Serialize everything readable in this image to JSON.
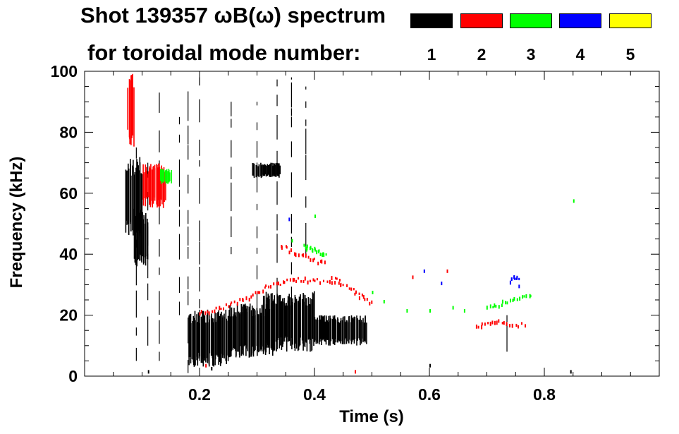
{
  "chart_data": {
    "type": "scatter",
    "title": "Shot 139357 ωB(ω) spectrum",
    "subtitle": "for toroidal mode number:",
    "xlabel": "Time (s)",
    "ylabel": "Frequency (kHz)",
    "xlim": [
      0.0,
      1.0
    ],
    "ylim": [
      0,
      100
    ],
    "x_ticks": [
      0.2,
      0.4,
      0.6,
      0.8
    ],
    "y_ticks": [
      0,
      20,
      40,
      60,
      80,
      100
    ],
    "legend": {
      "placement": "top-right",
      "entries": [
        {
          "n": "1",
          "color": "#000000"
        },
        {
          "n": "2",
          "color": "#ff0000"
        },
        {
          "n": "3",
          "color": "#00ff00"
        },
        {
          "n": "4",
          "color": "#0000ff"
        },
        {
          "n": "5",
          "color": "#ffff00"
        }
      ]
    },
    "series": [
      {
        "name": "n=1",
        "color": "#000000",
        "blobs": [
          {
            "t0": 0.07,
            "t1": 0.1,
            "f0": 45,
            "f1": 72
          },
          {
            "t0": 0.085,
            "t1": 0.11,
            "f0": 35,
            "f1": 55
          },
          {
            "t0": 0.18,
            "t1": 0.25,
            "f0": 3,
            "f1": 22
          },
          {
            "t0": 0.25,
            "t1": 0.33,
            "f0": 6,
            "f1": 24
          },
          {
            "t0": 0.31,
            "t1": 0.4,
            "f0": 8,
            "f1": 28
          },
          {
            "t0": 0.4,
            "t1": 0.49,
            "f0": 10,
            "f1": 20
          },
          {
            "t0": 0.29,
            "t1": 0.34,
            "f0": 65,
            "f1": 70
          }
        ],
        "lines": [
          {
            "t": 0.09,
            "f0": 5,
            "f1": 75
          },
          {
            "t": 0.11,
            "f0": 10,
            "f1": 70
          },
          {
            "t": 0.13,
            "f0": 5,
            "f1": 95
          },
          {
            "t": 0.165,
            "f0": 20,
            "f1": 85
          },
          {
            "t": 0.18,
            "f0": 1,
            "f1": 98
          },
          {
            "t": 0.2,
            "f0": 5,
            "f1": 98
          },
          {
            "t": 0.255,
            "f0": 40,
            "f1": 90
          },
          {
            "t": 0.3,
            "f0": 10,
            "f1": 90
          },
          {
            "t": 0.335,
            "f0": 25,
            "f1": 98
          },
          {
            "t": 0.36,
            "f0": 20,
            "f1": 98
          },
          {
            "t": 0.385,
            "f0": 40,
            "f1": 95
          },
          {
            "t": 0.735,
            "f0": 8,
            "f1": 20
          }
        ],
        "points": [
          [
            0.11,
            2
          ],
          [
            0.22,
            3
          ],
          [
            0.6,
            4
          ],
          [
            0.845,
            2
          ]
        ]
      },
      {
        "name": "n=2",
        "color": "#ff0000",
        "blobs": [
          {
            "t0": 0.075,
            "t1": 0.085,
            "f0": 75,
            "f1": 100
          },
          {
            "t0": 0.1,
            "t1": 0.14,
            "f0": 55,
            "f1": 70
          }
        ],
        "lines": [],
        "trails": [
          [
            [
              0.2,
              21
            ],
            [
              0.24,
              23
            ],
            [
              0.28,
              26
            ],
            [
              0.32,
              30
            ],
            [
              0.36,
              32
            ],
            [
              0.4,
              32
            ],
            [
              0.45,
              30
            ]
          ],
          [
            [
              0.34,
              43
            ],
            [
              0.38,
              40
            ],
            [
              0.42,
              37
            ]
          ],
          [
            [
              0.43,
              33
            ],
            [
              0.47,
              28
            ],
            [
              0.5,
              24
            ]
          ],
          [
            [
              0.68,
              17
            ],
            [
              0.72,
              18
            ],
            [
              0.77,
              17
            ]
          ]
        ],
        "points": [
          [
            0.21,
            4
          ],
          [
            0.47,
            2
          ],
          [
            0.57,
            33
          ],
          [
            0.63,
            35
          ]
        ]
      },
      {
        "name": "n=3",
        "color": "#00ff00",
        "blobs": [
          {
            "t0": 0.13,
            "t1": 0.15,
            "f0": 63,
            "f1": 68
          }
        ],
        "lines": [],
        "trails": [
          [
            [
              0.38,
              43
            ],
            [
              0.4,
              42
            ],
            [
              0.42,
              40
            ]
          ],
          [
            [
              0.7,
              23
            ],
            [
              0.74,
              25
            ],
            [
              0.78,
              27
            ]
          ]
        ],
        "points": [
          [
            0.36,
            45
          ],
          [
            0.4,
            53
          ],
          [
            0.5,
            28
          ],
          [
            0.52,
            25
          ],
          [
            0.56,
            22
          ],
          [
            0.6,
            22
          ],
          [
            0.64,
            23
          ],
          [
            0.66,
            22
          ],
          [
            0.85,
            58
          ]
        ]
      },
      {
        "name": "n=4",
        "color": "#0000ff",
        "blobs": [],
        "lines": [],
        "trails": [
          [
            [
              0.74,
              32
            ],
            [
              0.755,
              33
            ]
          ]
        ],
        "points": [
          [
            0.59,
            35
          ],
          [
            0.62,
            31
          ],
          [
            0.755,
            30
          ],
          [
            0.355,
            52
          ]
        ]
      },
      {
        "name": "n=5",
        "color": "#ffff00",
        "blobs": [],
        "lines": [],
        "trails": [],
        "points": []
      }
    ]
  }
}
